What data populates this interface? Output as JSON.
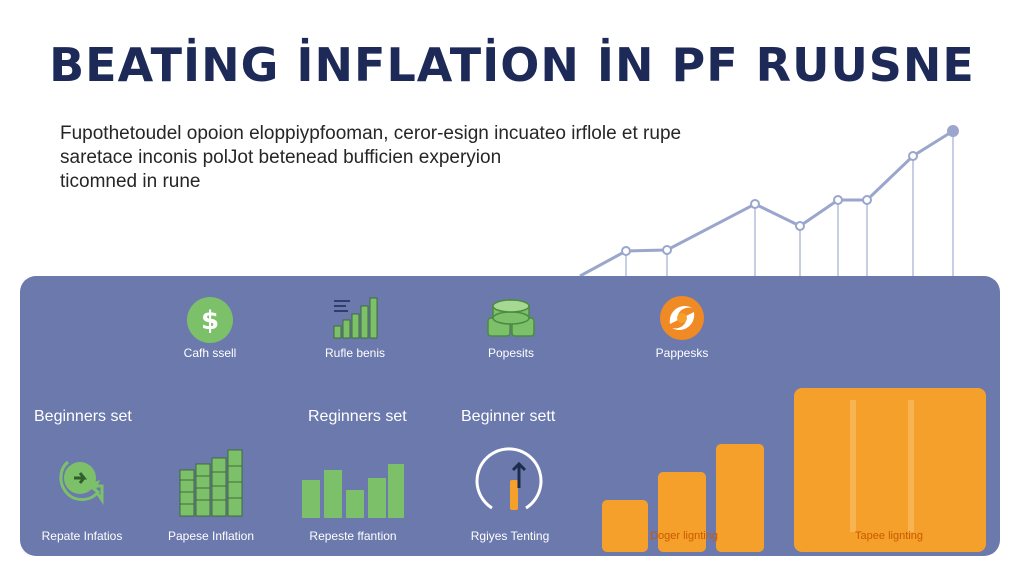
{
  "page": {
    "title": "BEATİNG İNFLATİON İN PF RUUSNE",
    "intro_lines": [
      "Fupothetoudel opoion eloppiypfooman, ceror-esign incuateo irflole et rupe",
      "saretace inconis polJot betenead bufficien experyion",
      "ticomned in rune"
    ]
  },
  "colors": {
    "title": "#1d2a57",
    "panel": "#6b79ad",
    "green": "#7cc06a",
    "orange": "#f5a02a",
    "trend_line": "#9aa6cc"
  },
  "panel": {
    "top_items": [
      {
        "icon": "dollar-coin-icon",
        "label": "Cafh ssell"
      },
      {
        "icon": "bar-chart-icon",
        "label": "Rufle benis"
      },
      {
        "icon": "coin-stack-icon",
        "label": "Popesits"
      },
      {
        "icon": "swirl-logo-icon",
        "label": "Pappesks"
      }
    ],
    "headings": [
      "Beginners set",
      "Reginners set",
      "Beginner sett"
    ],
    "bottom_items": [
      {
        "icon": "refresh-arrow-icon",
        "label": "Repate Infatios"
      },
      {
        "icon": "cash-stack-icon",
        "label": "Papese Inflation"
      },
      {
        "icon": "green-bars-icon",
        "label": "Repeste ffantion"
      },
      {
        "icon": "gauge-arrow-icon",
        "label": "Rgiyes Tenting"
      }
    ],
    "orange_labels": [
      "Doger lignting",
      "Tapee lignting"
    ]
  }
}
